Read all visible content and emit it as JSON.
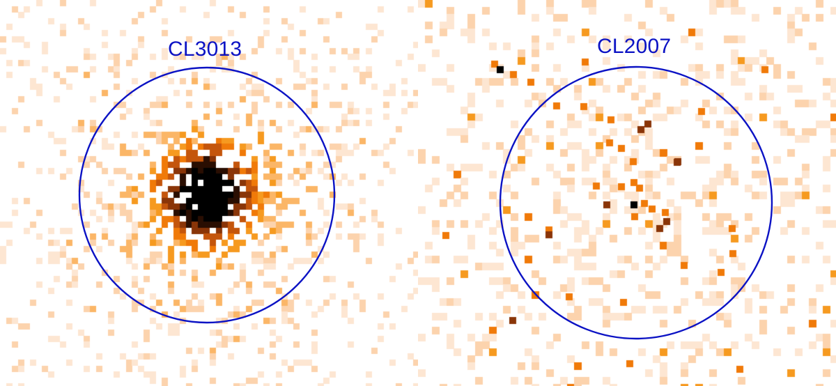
{
  "panels": [
    {
      "name": "CL3013"
    },
    {
      "name": "CL2007"
    }
  ],
  "colors": {
    "circle": "#0b12c4",
    "label": "#0b12c4",
    "pixel_ramp": [
      "#fde6d2",
      "#fcd3ad",
      "#fbb667",
      "#f69a20",
      "#f07a09",
      "#c4550c",
      "#8a3508",
      "#2a0e02",
      "#000000"
    ]
  }
}
